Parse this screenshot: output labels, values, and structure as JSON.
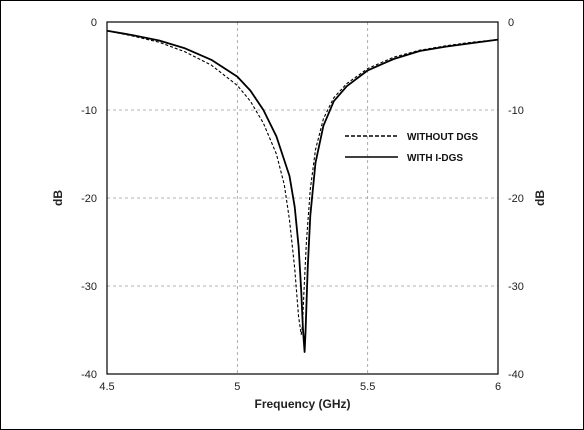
{
  "chart_data": {
    "type": "line",
    "title": "",
    "xlabel": "Frequency (GHz)",
    "ylabel_left": "dB",
    "ylabel_right": "dB",
    "xlim": [
      4.5,
      6
    ],
    "ylim": [
      -40,
      0
    ],
    "x_ticks": [
      4.5,
      5,
      5.5,
      6
    ],
    "x_tick_labels": [
      "4.5",
      "5",
      "5.5",
      "6"
    ],
    "y_ticks": [
      0,
      -10,
      -20,
      -30,
      -40
    ],
    "y_tick_labels": [
      "0",
      "-10",
      "-20",
      "-30",
      "-40"
    ],
    "grid": true,
    "legend_position": "top-right",
    "series": [
      {
        "name": "WITHOUT DGS",
        "style": "dashed",
        "color": "#000000",
        "x": [
          4.5,
          4.6,
          4.7,
          4.8,
          4.9,
          5.0,
          5.05,
          5.1,
          5.15,
          5.18,
          5.2,
          5.22,
          5.235,
          5.245,
          5.25,
          5.255,
          5.265,
          5.28,
          5.3,
          5.33,
          5.37,
          5.42,
          5.5,
          5.6,
          5.7,
          5.8,
          5.9,
          6.0
        ],
        "y": [
          -1.0,
          -1.6,
          -2.3,
          -3.4,
          -4.9,
          -7.2,
          -9.0,
          -11.5,
          -15.0,
          -18.5,
          -22.5,
          -28.0,
          -33.5,
          -35.5,
          -34.5,
          -31.0,
          -25.0,
          -19.0,
          -14.5,
          -11.0,
          -8.6,
          -7.0,
          -5.3,
          -4.0,
          -3.2,
          -2.7,
          -2.3,
          -2.0
        ]
      },
      {
        "name": "WITH I-DGS",
        "style": "solid",
        "color": "#000000",
        "x": [
          4.5,
          4.6,
          4.7,
          4.8,
          4.9,
          5.0,
          5.05,
          5.1,
          5.15,
          5.2,
          5.22,
          5.235,
          5.245,
          5.252,
          5.258,
          5.262,
          5.27,
          5.28,
          5.3,
          5.33,
          5.37,
          5.42,
          5.5,
          5.6,
          5.7,
          5.8,
          5.9,
          6.0
        ],
        "y": [
          -1.0,
          -1.5,
          -2.1,
          -3.0,
          -4.3,
          -6.2,
          -7.8,
          -10.0,
          -13.0,
          -17.5,
          -21.0,
          -25.5,
          -30.5,
          -35.0,
          -37.5,
          -35.0,
          -28.0,
          -22.0,
          -16.0,
          -11.8,
          -9.0,
          -7.3,
          -5.5,
          -4.2,
          -3.3,
          -2.8,
          -2.4,
          -2.0
        ]
      }
    ]
  }
}
